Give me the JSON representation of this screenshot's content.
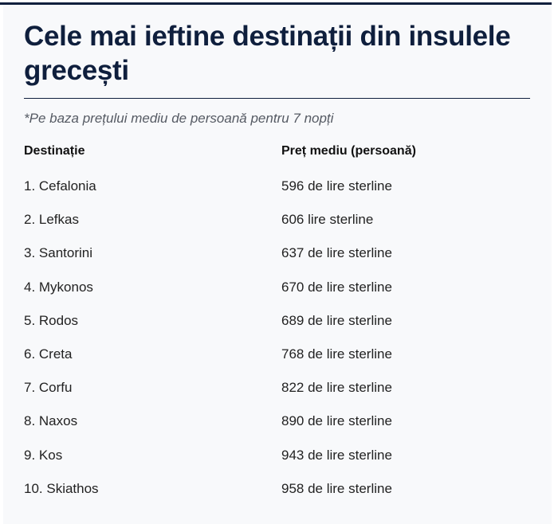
{
  "header": {
    "title": "Cele mai ieftine destinații din insulele grecești"
  },
  "note": "*Pe baza prețului mediu de persoană pentru 7 nopți",
  "table": {
    "columns": [
      "Destinație",
      "Preț mediu (persoană)"
    ],
    "rows": [
      [
        "1. Cefalonia",
        "596 de lire sterline"
      ],
      [
        "2. Lefkas",
        "606 lire sterline"
      ],
      [
        "3. Santorini",
        "637 de lire sterline"
      ],
      [
        "4. Mykonos",
        "670 de lire sterline"
      ],
      [
        "5. Rodos",
        "689 de lire sterline"
      ],
      [
        "6. Creta",
        "768 de lire sterline"
      ],
      [
        "7. Corfu",
        "822 de lire sterline"
      ],
      [
        "8. Naxos",
        "890 de lire sterline"
      ],
      [
        "9. Kos",
        "943 de lire sterline"
      ],
      [
        "10. Skiathos",
        "958 de lire sterline"
      ]
    ]
  }
}
